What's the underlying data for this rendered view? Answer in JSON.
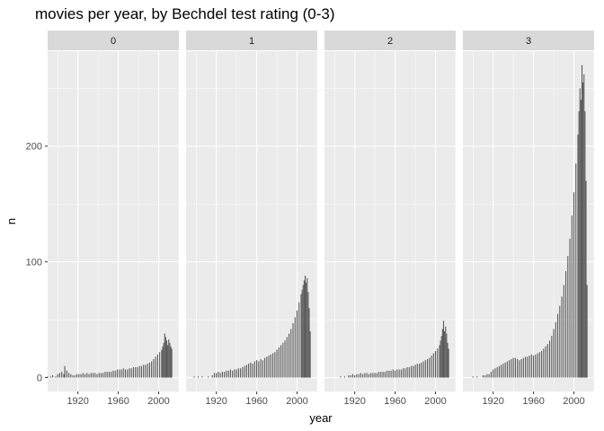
{
  "chart_data": {
    "type": "bar",
    "title": "movies per year, by Bechdel test rating (0-3)",
    "xlabel": "year",
    "ylabel": "n",
    "facet_var": "Bechdel test rating",
    "xlim": [
      1890,
      2020
    ],
    "ylim": [
      -12,
      282
    ],
    "x_ticks": [
      1920,
      1960,
      2000
    ],
    "y_ticks": [
      0,
      100,
      200
    ],
    "grid": true,
    "facets": [
      {
        "label": "0",
        "points": [
          [
            1890,
            1
          ],
          [
            1893,
            1
          ],
          [
            1895,
            2
          ],
          [
            1898,
            1
          ],
          [
            1900,
            3
          ],
          [
            1902,
            4
          ],
          [
            1904,
            5
          ],
          [
            1906,
            3
          ],
          [
            1907,
            10
          ],
          [
            1909,
            6
          ],
          [
            1911,
            4
          ],
          [
            1913,
            3
          ],
          [
            1915,
            2
          ],
          [
            1917,
            2
          ],
          [
            1919,
            3
          ],
          [
            1921,
            3
          ],
          [
            1923,
            3
          ],
          [
            1925,
            4
          ],
          [
            1927,
            3
          ],
          [
            1929,
            4
          ],
          [
            1931,
            3
          ],
          [
            1933,
            4
          ],
          [
            1935,
            4
          ],
          [
            1937,
            4
          ],
          [
            1939,
            3
          ],
          [
            1941,
            4
          ],
          [
            1943,
            4
          ],
          [
            1945,
            4
          ],
          [
            1947,
            5
          ],
          [
            1949,
            5
          ],
          [
            1951,
            5
          ],
          [
            1953,
            5
          ],
          [
            1955,
            6
          ],
          [
            1957,
            6
          ],
          [
            1959,
            7
          ],
          [
            1961,
            7
          ],
          [
            1963,
            7
          ],
          [
            1965,
            8
          ],
          [
            1967,
            7
          ],
          [
            1969,
            7
          ],
          [
            1971,
            8
          ],
          [
            1973,
            8
          ],
          [
            1975,
            9
          ],
          [
            1977,
            9
          ],
          [
            1979,
            9
          ],
          [
            1981,
            10
          ],
          [
            1983,
            10
          ],
          [
            1985,
            11
          ],
          [
            1987,
            11
          ],
          [
            1989,
            12
          ],
          [
            1991,
            13
          ],
          [
            1993,
            14
          ],
          [
            1995,
            16
          ],
          [
            1997,
            18
          ],
          [
            1999,
            20
          ],
          [
            2001,
            22
          ],
          [
            2003,
            24
          ],
          [
            2004,
            27
          ],
          [
            2005,
            30
          ],
          [
            2006,
            38
          ],
          [
            2007,
            35
          ],
          [
            2008,
            32
          ],
          [
            2009,
            28
          ],
          [
            2010,
            33
          ],
          [
            2011,
            30
          ],
          [
            2012,
            27
          ],
          [
            2013,
            25
          ]
        ]
      },
      {
        "label": "1",
        "points": [
          [
            1898,
            1
          ],
          [
            1902,
            1
          ],
          [
            1906,
            1
          ],
          [
            1912,
            1
          ],
          [
            1916,
            2
          ],
          [
            1918,
            4
          ],
          [
            1920,
            4
          ],
          [
            1922,
            5
          ],
          [
            1924,
            4
          ],
          [
            1926,
            5
          ],
          [
            1928,
            5
          ],
          [
            1930,
            6
          ],
          [
            1932,
            6
          ],
          [
            1934,
            7
          ],
          [
            1936,
            6
          ],
          [
            1938,
            7
          ],
          [
            1940,
            7
          ],
          [
            1942,
            8
          ],
          [
            1944,
            8
          ],
          [
            1946,
            9
          ],
          [
            1948,
            10
          ],
          [
            1950,
            11
          ],
          [
            1952,
            12
          ],
          [
            1954,
            13
          ],
          [
            1956,
            12
          ],
          [
            1958,
            14
          ],
          [
            1960,
            15
          ],
          [
            1962,
            14
          ],
          [
            1964,
            16
          ],
          [
            1966,
            15
          ],
          [
            1968,
            17
          ],
          [
            1970,
            18
          ],
          [
            1972,
            19
          ],
          [
            1974,
            20
          ],
          [
            1976,
            21
          ],
          [
            1978,
            22
          ],
          [
            1980,
            24
          ],
          [
            1982,
            26
          ],
          [
            1984,
            28
          ],
          [
            1986,
            30
          ],
          [
            1988,
            32
          ],
          [
            1990,
            35
          ],
          [
            1992,
            38
          ],
          [
            1994,
            42
          ],
          [
            1996,
            47
          ],
          [
            1998,
            52
          ],
          [
            2000,
            58
          ],
          [
            2002,
            65
          ],
          [
            2004,
            72
          ],
          [
            2005,
            76
          ],
          [
            2006,
            80
          ],
          [
            2007,
            84
          ],
          [
            2008,
            88
          ],
          [
            2009,
            82
          ],
          [
            2010,
            86
          ],
          [
            2011,
            74
          ],
          [
            2012,
            60
          ],
          [
            2013,
            40
          ]
        ]
      },
      {
        "label": "2",
        "points": [
          [
            1906,
            1
          ],
          [
            1910,
            1
          ],
          [
            1914,
            2
          ],
          [
            1916,
            2
          ],
          [
            1918,
            3
          ],
          [
            1920,
            2
          ],
          [
            1922,
            3
          ],
          [
            1924,
            3
          ],
          [
            1926,
            4
          ],
          [
            1928,
            3
          ],
          [
            1930,
            4
          ],
          [
            1932,
            4
          ],
          [
            1934,
            3
          ],
          [
            1936,
            4
          ],
          [
            1938,
            4
          ],
          [
            1940,
            4
          ],
          [
            1942,
            4
          ],
          [
            1944,
            5
          ],
          [
            1946,
            5
          ],
          [
            1948,
            5
          ],
          [
            1950,
            5
          ],
          [
            1952,
            6
          ],
          [
            1954,
            6
          ],
          [
            1956,
            6
          ],
          [
            1958,
            7
          ],
          [
            1960,
            6
          ],
          [
            1962,
            7
          ],
          [
            1964,
            7
          ],
          [
            1966,
            7
          ],
          [
            1968,
            8
          ],
          [
            1970,
            8
          ],
          [
            1972,
            9
          ],
          [
            1974,
            9
          ],
          [
            1976,
            10
          ],
          [
            1978,
            10
          ],
          [
            1980,
            11
          ],
          [
            1982,
            12
          ],
          [
            1984,
            12
          ],
          [
            1986,
            13
          ],
          [
            1988,
            14
          ],
          [
            1990,
            15
          ],
          [
            1992,
            16
          ],
          [
            1994,
            17
          ],
          [
            1996,
            19
          ],
          [
            1998,
            21
          ],
          [
            2000,
            23
          ],
          [
            2002,
            25
          ],
          [
            2004,
            28
          ],
          [
            2005,
            32
          ],
          [
            2006,
            36
          ],
          [
            2007,
            42
          ],
          [
            2008,
            49
          ],
          [
            2009,
            40
          ],
          [
            2010,
            44
          ],
          [
            2011,
            38
          ],
          [
            2012,
            30
          ],
          [
            2013,
            25
          ]
        ]
      },
      {
        "label": "3",
        "points": [
          [
            1900,
            1
          ],
          [
            1904,
            1
          ],
          [
            1910,
            2
          ],
          [
            1912,
            2
          ],
          [
            1914,
            3
          ],
          [
            1916,
            3
          ],
          [
            1918,
            5
          ],
          [
            1920,
            7
          ],
          [
            1922,
            8
          ],
          [
            1924,
            9
          ],
          [
            1926,
            10
          ],
          [
            1928,
            11
          ],
          [
            1930,
            12
          ],
          [
            1932,
            13
          ],
          [
            1934,
            14
          ],
          [
            1936,
            15
          ],
          [
            1938,
            16
          ],
          [
            1940,
            17
          ],
          [
            1942,
            17
          ],
          [
            1944,
            16
          ],
          [
            1946,
            15
          ],
          [
            1948,
            16
          ],
          [
            1950,
            17
          ],
          [
            1952,
            18
          ],
          [
            1954,
            18
          ],
          [
            1956,
            19
          ],
          [
            1958,
            20
          ],
          [
            1960,
            19
          ],
          [
            1962,
            20
          ],
          [
            1964,
            21
          ],
          [
            1966,
            22
          ],
          [
            1968,
            23
          ],
          [
            1970,
            25
          ],
          [
            1972,
            27
          ],
          [
            1974,
            29
          ],
          [
            1976,
            32
          ],
          [
            1978,
            36
          ],
          [
            1980,
            42
          ],
          [
            1982,
            48
          ],
          [
            1984,
            55
          ],
          [
            1986,
            62
          ],
          [
            1988,
            70
          ],
          [
            1990,
            80
          ],
          [
            1992,
            92
          ],
          [
            1994,
            105
          ],
          [
            1996,
            120
          ],
          [
            1998,
            140
          ],
          [
            2000,
            160
          ],
          [
            2002,
            185
          ],
          [
            2004,
            210
          ],
          [
            2005,
            230
          ],
          [
            2006,
            250
          ],
          [
            2007,
            240
          ],
          [
            2008,
            270
          ],
          [
            2009,
            255
          ],
          [
            2010,
            262
          ],
          [
            2011,
            230
          ],
          [
            2012,
            170
          ],
          [
            2013,
            80
          ]
        ]
      }
    ]
  }
}
